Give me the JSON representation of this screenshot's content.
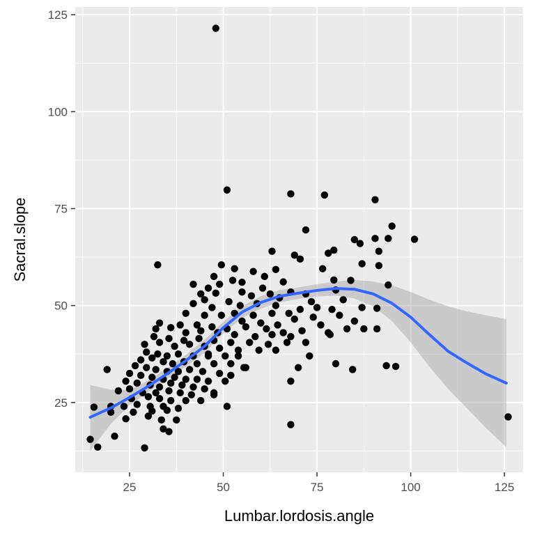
{
  "chart_data": {
    "type": "scatter",
    "xlabel": "Lumbar.lordosis.angle",
    "ylabel": "Sacral.slope",
    "xlim": [
      10.5,
      130
    ],
    "ylim": [
      7,
      127
    ],
    "x_ticks": [
      25,
      50,
      75,
      100,
      125
    ],
    "y_ticks": [
      25,
      50,
      75,
      100,
      125
    ],
    "x_tick_labels": [
      "25",
      "50",
      "75",
      "100",
      "125"
    ],
    "y_tick_labels": [
      "25",
      "50",
      "75",
      "100",
      "125"
    ],
    "grid": true,
    "legend": "none",
    "colors": {
      "panel": "#ebebeb",
      "grid": "#ffffff",
      "points": "#000000",
      "smooth_line": "#3366ff",
      "ribbon": "#999999"
    },
    "points": [
      [
        48,
        121.5
      ],
      [
        51,
        79.8
      ],
      [
        68,
        78.8
      ],
      [
        77,
        78.5
      ],
      [
        90.5,
        77.3
      ],
      [
        95,
        70.5
      ],
      [
        72,
        69.5
      ],
      [
        101,
        67.1
      ],
      [
        90.5,
        67.3
      ],
      [
        94,
        67.3
      ],
      [
        85,
        67
      ],
      [
        86.5,
        66
      ],
      [
        91.5,
        64
      ],
      [
        78,
        63.5
      ],
      [
        69,
        63
      ],
      [
        63,
        64
      ],
      [
        70.5,
        62
      ],
      [
        79.5,
        64.3
      ],
      [
        32.5,
        60.5
      ],
      [
        49.5,
        60.5
      ],
      [
        53,
        59.5
      ],
      [
        87,
        60.8
      ],
      [
        91.5,
        60.3
      ],
      [
        58,
        58.8
      ],
      [
        64,
        59.3
      ],
      [
        76.5,
        59.5
      ],
      [
        84,
        56.5
      ],
      [
        61,
        57.5
      ],
      [
        55,
        56
      ],
      [
        46,
        54.5
      ],
      [
        42,
        55.5
      ],
      [
        66,
        56.1
      ],
      [
        79.5,
        56.6
      ],
      [
        52.5,
        56.5
      ],
      [
        47.5,
        57.5
      ],
      [
        49,
        55.5
      ],
      [
        55,
        53.5
      ],
      [
        60.5,
        54.5
      ],
      [
        68,
        53.5
      ],
      [
        72,
        53
      ],
      [
        80,
        54
      ],
      [
        94,
        55.3
      ],
      [
        44,
        53
      ],
      [
        48,
        53.2
      ],
      [
        57.5,
        52.5
      ],
      [
        62.5,
        53
      ],
      [
        65,
        52
      ],
      [
        73.5,
        51
      ],
      [
        82,
        51.5
      ],
      [
        45,
        51.5
      ],
      [
        51.5,
        51
      ],
      [
        54.5,
        50
      ],
      [
        59,
        50.5
      ],
      [
        64,
        50
      ],
      [
        70.5,
        49
      ],
      [
        75,
        49.5
      ],
      [
        79,
        49
      ],
      [
        87,
        49.5
      ],
      [
        91,
        49.3
      ],
      [
        42,
        50.5
      ],
      [
        47,
        49.5
      ],
      [
        53,
        48
      ],
      [
        58,
        47.5
      ],
      [
        63,
        48
      ],
      [
        67.5,
        48
      ],
      [
        74,
        47
      ],
      [
        81,
        47.5
      ],
      [
        85,
        46
      ],
      [
        40,
        48
      ],
      [
        45,
        47.5
      ],
      [
        49.5,
        47.5
      ],
      [
        55,
        46
      ],
      [
        60,
        45.5
      ],
      [
        64.5,
        45
      ],
      [
        69,
        46.5
      ],
      [
        76,
        45
      ],
      [
        33,
        45.5
      ],
      [
        38.5,
        45
      ],
      [
        43,
        45
      ],
      [
        47,
        44.5
      ],
      [
        51,
        44
      ],
      [
        56,
        44.5
      ],
      [
        61.5,
        44
      ],
      [
        66,
        43
      ],
      [
        71,
        43.5
      ],
      [
        78,
        43
      ],
      [
        83,
        44
      ],
      [
        87.5,
        44
      ],
      [
        91,
        44
      ],
      [
        32,
        44
      ],
      [
        36,
        44.3
      ],
      [
        40,
        43
      ],
      [
        44,
        43.5
      ],
      [
        48.5,
        43
      ],
      [
        53,
        42.5
      ],
      [
        58.5,
        42
      ],
      [
        63,
        42.5
      ],
      [
        68,
        42
      ],
      [
        78.5,
        42.5
      ],
      [
        31.5,
        42
      ],
      [
        35.5,
        41.5
      ],
      [
        39.5,
        41
      ],
      [
        43.5,
        41.5
      ],
      [
        47.5,
        41
      ],
      [
        52,
        40.5
      ],
      [
        57,
        40.5
      ],
      [
        62,
        40
      ],
      [
        67,
        40.5
      ],
      [
        72,
        40.5
      ],
      [
        29,
        40
      ],
      [
        33,
        40.5
      ],
      [
        37,
        39.5
      ],
      [
        41,
        40
      ],
      [
        45,
        39.5
      ],
      [
        49,
        39
      ],
      [
        54,
        38.5
      ],
      [
        59.5,
        38.5
      ],
      [
        64,
        38.5
      ],
      [
        29.5,
        38
      ],
      [
        32.5,
        37.5
      ],
      [
        35,
        37
      ],
      [
        38,
        37.5
      ],
      [
        42,
        37
      ],
      [
        46,
        37
      ],
      [
        50.5,
        37
      ],
      [
        54,
        37
      ],
      [
        28,
        36
      ],
      [
        31,
        36.5
      ],
      [
        34,
        35.5
      ],
      [
        36.5,
        35
      ],
      [
        39.5,
        35.5
      ],
      [
        43,
        35
      ],
      [
        47.5,
        35
      ],
      [
        52,
        35
      ],
      [
        55.5,
        34
      ],
      [
        19,
        33.5
      ],
      [
        26.5,
        34.5
      ],
      [
        29.5,
        34
      ],
      [
        32,
        33.5
      ],
      [
        35,
        33
      ],
      [
        38,
        33
      ],
      [
        41,
        33.5
      ],
      [
        44.5,
        33
      ],
      [
        49,
        32.5
      ],
      [
        52,
        32
      ],
      [
        25,
        32.5
      ],
      [
        28,
        32
      ],
      [
        31,
        31.5
      ],
      [
        34,
        31
      ],
      [
        37,
        31.5
      ],
      [
        40,
        31
      ],
      [
        43,
        31
      ],
      [
        46,
        30.5
      ],
      [
        50.5,
        30.5
      ],
      [
        24,
        30.5
      ],
      [
        27,
        30
      ],
      [
        30.5,
        29.5
      ],
      [
        33,
        29
      ],
      [
        36,
        30
      ],
      [
        39,
        29.5
      ],
      [
        42,
        29
      ],
      [
        45,
        28.5
      ],
      [
        22,
        28
      ],
      [
        25,
        28.5
      ],
      [
        28.5,
        27.5
      ],
      [
        32,
        27.5
      ],
      [
        35.5,
        28
      ],
      [
        38.5,
        27.5
      ],
      [
        41.5,
        27
      ],
      [
        47.5,
        27.5
      ],
      [
        25.5,
        26
      ],
      [
        30,
        26.5
      ],
      [
        33,
        26
      ],
      [
        36,
        25.5
      ],
      [
        40,
        25.5
      ],
      [
        44,
        25.5
      ],
      [
        47.5,
        27
      ],
      [
        20,
        24
      ],
      [
        23.5,
        24
      ],
      [
        27,
        24.5
      ],
      [
        30.5,
        24
      ],
      [
        34,
        24
      ],
      [
        38,
        23.5
      ],
      [
        15.5,
        23.8
      ],
      [
        20,
        22.5
      ],
      [
        26,
        22.5
      ],
      [
        31,
        22.8
      ],
      [
        35,
        23
      ],
      [
        51,
        24
      ],
      [
        24,
        20.8
      ],
      [
        30,
        21.5
      ],
      [
        33.5,
        20.5
      ],
      [
        37.5,
        20.5
      ],
      [
        34,
        18.2
      ],
      [
        35.5,
        17.5
      ],
      [
        16.5,
        13.5
      ],
      [
        14.5,
        15.5
      ],
      [
        21,
        16.3
      ],
      [
        29,
        13.3
      ],
      [
        68,
        19.3
      ],
      [
        126,
        21.3
      ],
      [
        68,
        30.5
      ],
      [
        70,
        34
      ],
      [
        56,
        34
      ],
      [
        80,
        35
      ],
      [
        84.5,
        33.5
      ],
      [
        93.5,
        34.5
      ],
      [
        96,
        34.3
      ],
      [
        46,
        37.5
      ],
      [
        73,
        37
      ]
    ],
    "smooth_fit": [
      [
        14.5,
        21.2
      ],
      [
        20,
        23.6
      ],
      [
        25,
        26.3
      ],
      [
        30,
        29.2
      ],
      [
        35,
        32.4
      ],
      [
        40,
        35.8
      ],
      [
        45,
        39.5
      ],
      [
        50,
        44.3
      ],
      [
        55,
        48.3
      ],
      [
        60,
        50.8
      ],
      [
        65,
        52.4
      ],
      [
        70,
        53.2
      ],
      [
        75,
        53.9
      ],
      [
        80,
        54.4
      ],
      [
        85,
        54.2
      ],
      [
        90,
        53.0
      ],
      [
        95,
        50.6
      ],
      [
        100,
        47.0
      ],
      [
        105,
        42.5
      ],
      [
        110,
        38.2
      ],
      [
        115,
        35.2
      ],
      [
        120,
        32.4
      ],
      [
        125.5,
        30.0
      ]
    ],
    "confidence_band": {
      "x": [
        14.5,
        20,
        25,
        30,
        35,
        40,
        45,
        50,
        55,
        60,
        65,
        70,
        75,
        80,
        85,
        90,
        95,
        100,
        105,
        110,
        115,
        120,
        125.5
      ],
      "lower": [
        12.5,
        19.5,
        24.3,
        27.7,
        31.0,
        34.3,
        37.8,
        42.8,
        46.8,
        49.2,
        50.8,
        51.7,
        52.3,
        52.6,
        51.8,
        49.8,
        46.0,
        40.5,
        34.2,
        28.5,
        23.5,
        18.5,
        13.5
      ],
      "upper": [
        29.5,
        28.3,
        28.2,
        30.7,
        33.8,
        37.3,
        41.2,
        45.8,
        49.8,
        52.4,
        54.0,
        54.7,
        55.5,
        56.2,
        56.6,
        56.2,
        55.2,
        53.5,
        51.5,
        49.8,
        48.5,
        47.5,
        46.5
      ]
    }
  }
}
